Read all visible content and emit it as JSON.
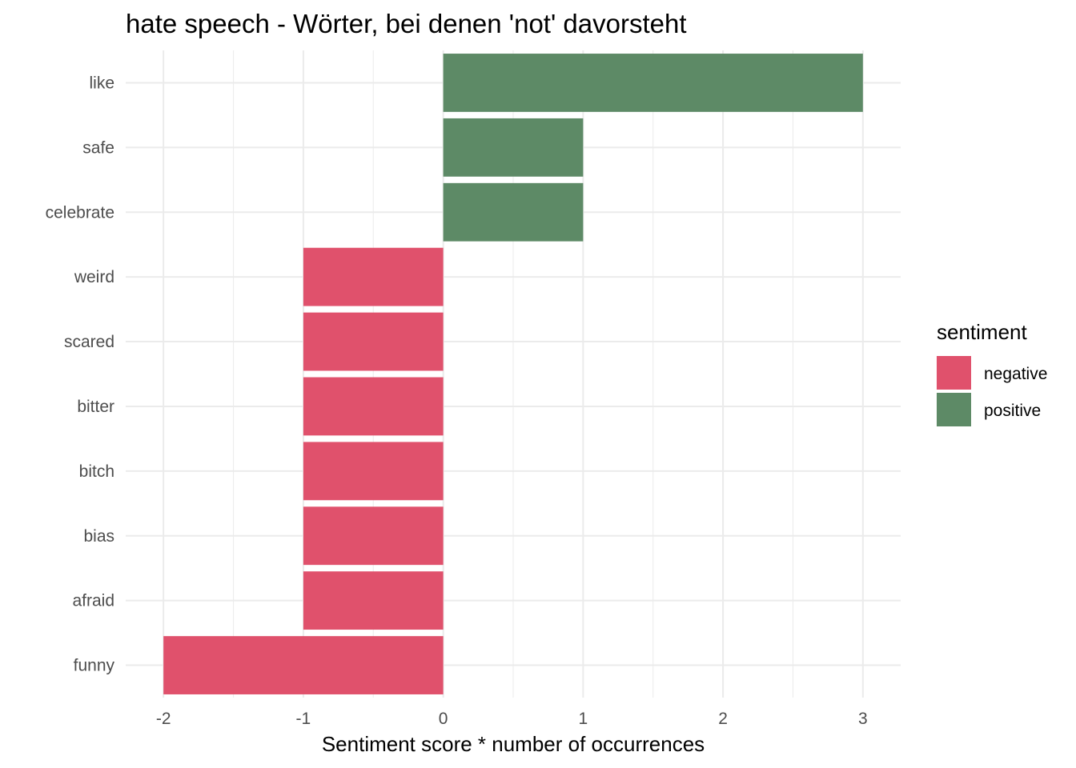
{
  "chart_data": {
    "type": "bar",
    "orientation": "horizontal",
    "title": "hate speech - Wörter, bei denen 'not' davorsteht",
    "xlabel": "Sentiment score * number of occurrences",
    "ylabel": "",
    "xlim": [
      -2.27,
      3.27
    ],
    "x_ticks": [
      "-2",
      "-1",
      "0",
      "1",
      "2",
      "3"
    ],
    "x_tick_values": [
      -2,
      -1,
      0,
      1,
      2,
      3
    ],
    "categories": [
      "like",
      "safe",
      "celebrate",
      "weird",
      "scared",
      "bitter",
      "bitch",
      "bias",
      "afraid",
      "funny"
    ],
    "values": [
      3,
      1,
      1,
      -1,
      -1,
      -1,
      -1,
      -1,
      -1,
      -2
    ],
    "sentiment": [
      "positive",
      "positive",
      "positive",
      "negative",
      "negative",
      "negative",
      "negative",
      "negative",
      "negative",
      "negative"
    ],
    "grid": true,
    "legend": {
      "title": "sentiment",
      "placement": "right",
      "entries": [
        {
          "name": "negative",
          "color": "#E0516C"
        },
        {
          "name": "positive",
          "color": "#5D8A66"
        }
      ]
    },
    "colors": {
      "negative": "#E0516C",
      "positive": "#5D8A66",
      "grid": "#EBEBEB"
    }
  }
}
